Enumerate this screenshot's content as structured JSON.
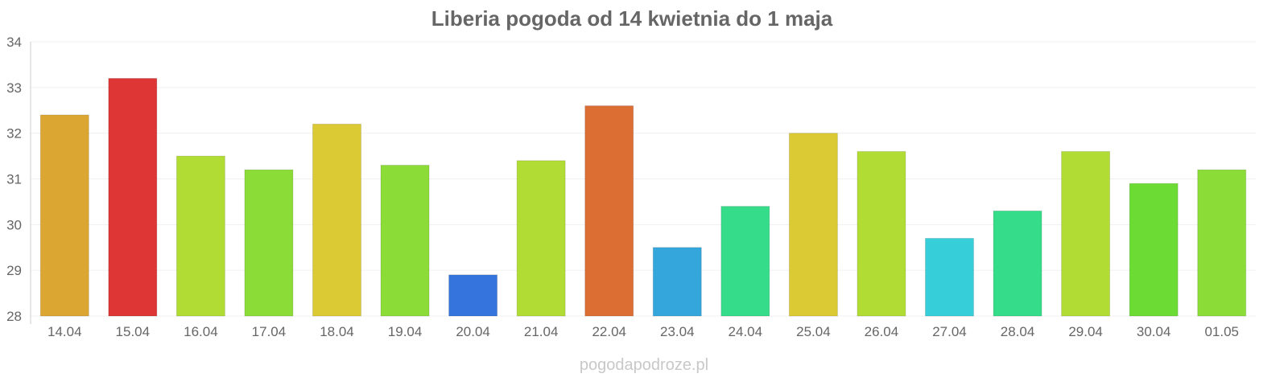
{
  "chart_data": {
    "type": "bar",
    "title": "Liberia pogoda od 14 kwietnia do 1 maja",
    "xlabel": "",
    "ylabel": "",
    "ylim": [
      28,
      34
    ],
    "yticks": [
      28,
      29,
      30,
      31,
      32,
      33,
      34
    ],
    "grid": true,
    "categories": [
      "14.04",
      "15.04",
      "16.04",
      "17.04",
      "18.04",
      "19.04",
      "20.04",
      "21.04",
      "22.04",
      "23.04",
      "24.04",
      "25.04",
      "26.04",
      "27.04",
      "28.04",
      "29.04",
      "30.04",
      "01.05"
    ],
    "values": [
      32.4,
      33.2,
      31.5,
      31.2,
      32.2,
      31.3,
      28.9,
      31.4,
      32.6,
      29.5,
      30.4,
      32.0,
      31.6,
      29.7,
      30.3,
      31.6,
      30.9,
      31.2
    ],
    "colors": [
      "#dba632",
      "#de3535",
      "#b0dc33",
      "#8cdc37",
      "#dbca33",
      "#8cdc37",
      "#3474dc",
      "#b0dc33",
      "#dc6e34",
      "#34a6dc",
      "#35dc8a",
      "#dbca33",
      "#b0dc33",
      "#35ced9",
      "#35dc8a",
      "#b0dc33",
      "#6cdc35",
      "#8cdc37"
    ]
  },
  "watermark": "pogodapodroze.pl"
}
